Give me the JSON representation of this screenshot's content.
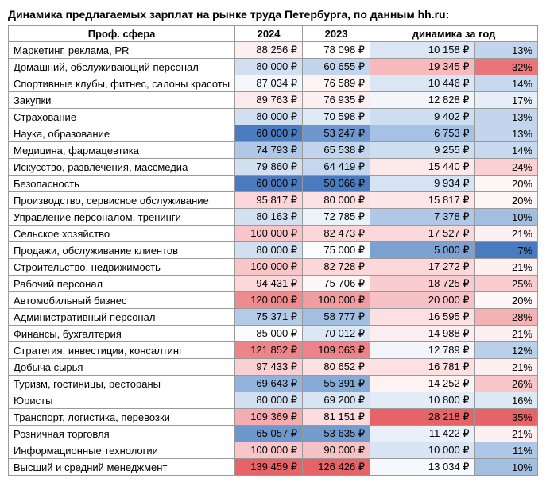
{
  "title": "Динамика предлагаемых зарплат на рынке труда Петербурга, по данным hh.ru:",
  "headers": {
    "sphere": "Проф. сфера",
    "y2024": "2024",
    "y2023": "2023",
    "dynamic": "динамика за год"
  },
  "currency": "₽",
  "rows": [
    {
      "label": "Маркетинг, реклама, PR",
      "v24": "88 256",
      "c24": "#fdeff1",
      "v23": "78 098",
      "c23": "#ffffff",
      "diff": "10 158",
      "cd": "#dbe6f5",
      "pct": "13%",
      "cp": "#c2d5ed"
    },
    {
      "label": "Домашний, обслуживающий персонал",
      "v24": "80 000",
      "c24": "#d2dff0",
      "v23": "60 655",
      "c23": "#c2d5ed",
      "diff": "19 345",
      "cd": "#f6b9bc",
      "pct": "32%",
      "cp": "#e9767a"
    },
    {
      "label": "Спортивные клубы, фитнес, салоны красоты",
      "v24": "87 034",
      "c24": "#f3f7fb",
      "v23": "76 589",
      "c23": "#fdf3f4",
      "diff": "10 446",
      "cd": "#dbe6f5",
      "pct": "14%",
      "cp": "#c7d9ef"
    },
    {
      "label": "Закупки",
      "v24": "89 763",
      "c24": "#fdeaec",
      "v23": "76 935",
      "c23": "#fdeff1",
      "diff": "12 828",
      "cd": "#f2f6fb",
      "pct": "17%",
      "cp": "#e6eef8"
    },
    {
      "label": "Страхование",
      "v24": "80 000",
      "c24": "#d2dff0",
      "v23": "70 598",
      "c23": "#e0eaf6",
      "diff": "9 402",
      "cd": "#cedef1",
      "pct": "13%",
      "cp": "#c2d5ed"
    },
    {
      "label": "Наука, образование",
      "v24": "60 000",
      "c24": "#4a7bbf",
      "v23": "53 247",
      "c23": "#6e97cd",
      "diff": "6 753",
      "cd": "#a5c1e3",
      "pct": "13%",
      "cp": "#c2d5ed"
    },
    {
      "label": "Медицина, фармацевтика",
      "v24": "74 793",
      "c24": "#b0c8e6",
      "v23": "65 538",
      "c23": "#c2d5ed",
      "diff": "9 255",
      "cd": "#cedef1",
      "pct": "14%",
      "cp": "#c7d9ef"
    },
    {
      "label": "Искусство, развлечения, массмедиа",
      "v24": "79 860",
      "c24": "#d2dff0",
      "v23": "64 419",
      "c23": "#c5d7ee",
      "diff": "15 440",
      "cd": "#fde8ea",
      "pct": "24%",
      "cp": "#fad0d2"
    },
    {
      "label": "Безопасность",
      "v24": "60 000",
      "c24": "#4a7bbf",
      "v23": "50 066",
      "c23": "#4a7bbf",
      "diff": "9 934",
      "cd": "#d6e3f4",
      "pct": "20%",
      "cp": "#fef6f7"
    },
    {
      "label": "Производство, сервисное обслуживание",
      "v24": "95 817",
      "c24": "#fbd5d7",
      "v23": "80 000",
      "c23": "#fce0e2",
      "diff": "15 817",
      "cd": "#fde6e8",
      "pct": "20%",
      "cp": "#fef6f7"
    },
    {
      "label": "Управление персоналом, тренинги",
      "v24": "80 163",
      "c24": "#d2e0f1",
      "v23": "72 785",
      "c23": "#ecf2f9",
      "diff": "7 378",
      "cd": "#b0c8e6",
      "pct": "10%",
      "cp": "#a2bfe2"
    },
    {
      "label": "Сельское хозяйство",
      "v24": "100 000",
      "c24": "#f8c6c9",
      "v23": "82 473",
      "c23": "#fbd7d9",
      "diff": "17 527",
      "cd": "#fbd9db",
      "pct": "21%",
      "cp": "#feeff1"
    },
    {
      "label": "Продажи, обслуживание клиентов",
      "v24": "80 000",
      "c24": "#d2dff0",
      "v23": "75 000",
      "c23": "#fbfcfe",
      "diff": "5 000",
      "cd": "#7ba1d2",
      "pct": "7%",
      "cp": "#4a7bbf"
    },
    {
      "label": "Строительство, недвижимость",
      "v24": "100 000",
      "c24": "#f8c6c9",
      "v23": "82 728",
      "c23": "#fbd7d9",
      "diff": "17 272",
      "cd": "#fbd9db",
      "pct": "21%",
      "cp": "#feeff1"
    },
    {
      "label": "Рабочий персонал",
      "v24": "94 431",
      "c24": "#fbd9db",
      "v23": "75 706",
      "c23": "#fdf7f8",
      "diff": "18 725",
      "cd": "#f9cdcf",
      "pct": "25%",
      "cp": "#f9cdcf"
    },
    {
      "label": "Автомобильный бизнес",
      "v24": "120 000",
      "c24": "#ed8b8f",
      "v23": "100 000",
      "c23": "#f09da0",
      "diff": "20 000",
      "cd": "#f7c2c5",
      "pct": "20%",
      "cp": "#fef6f7"
    },
    {
      "label": "Административный персонал",
      "v24": "75 371",
      "c24": "#b4cbe8",
      "v23": "58 777",
      "c23": "#a2bfe2",
      "diff": "16 595",
      "cd": "#fce0e2",
      "pct": "28%",
      "cp": "#f4b2b5"
    },
    {
      "label": "Финансы, бухгалтерия",
      "v24": "85 000",
      "c24": "#fbfcfe",
      "v23": "70 012",
      "c23": "#dce7f5",
      "diff": "14 988",
      "cd": "#fdeff1",
      "pct": "21%",
      "cp": "#feeff1"
    },
    {
      "label": "Стратегия, инвестиции, консалтинг",
      "v24": "121 852",
      "c24": "#ec8589",
      "v23": "109 063",
      "c23": "#eb8388",
      "diff": "12 789",
      "cd": "#f2f6fb",
      "pct": "12%",
      "cp": "#bad0ea"
    },
    {
      "label": "Добыча сырья",
      "v24": "97 433",
      "c24": "#facfd1",
      "v23": "80 652",
      "c23": "#fce0e2",
      "diff": "16 781",
      "cd": "#fce0e2",
      "pct": "21%",
      "cp": "#feeff1"
    },
    {
      "label": "Туризм, гостиницы, рестораны",
      "v24": "69 643",
      "c24": "#92b4dc",
      "v23": "55 391",
      "c23": "#85abd7",
      "diff": "14 252",
      "cd": "#fef2f3",
      "pct": "26%",
      "cp": "#f8c6c9"
    },
    {
      "label": "Юристы",
      "v24": "80 000",
      "c24": "#d2dff0",
      "v23": "69 200",
      "c23": "#d8e4f4",
      "diff": "10 800",
      "cd": "#e2ebf6",
      "pct": "16%",
      "cp": "#dde8f5"
    },
    {
      "label": "Транспорт, логистика, перевозки",
      "v24": "109 369",
      "c24": "#f3adb0",
      "v23": "81 151",
      "c23": "#fcdcde",
      "diff": "28 218",
      "cd": "#e66368",
      "pct": "35%",
      "cp": "#e66368"
    },
    {
      "label": "Розничная торговля",
      "v24": "65 057",
      "c24": "#6e97cd",
      "v23": "53 635",
      "c23": "#739bce",
      "diff": "11 422",
      "cd": "#e9f0f9",
      "pct": "21%",
      "cp": "#feeff1"
    },
    {
      "label": "Информационные технологии",
      "v24": "100 000",
      "c24": "#f8c6c9",
      "v23": "90 000",
      "c23": "#f7c2c5",
      "diff": "10 000",
      "cd": "#d8e4f4",
      "pct": "11%",
      "cp": "#aec7e6"
    },
    {
      "label": "Высший и средний менеджмент",
      "v24": "139 459",
      "c24": "#e66368",
      "v23": "126 426",
      "c23": "#e66368",
      "diff": "13 034",
      "cd": "#f5f8fc",
      "pct": "10%",
      "cp": "#a2bfe2"
    }
  ]
}
